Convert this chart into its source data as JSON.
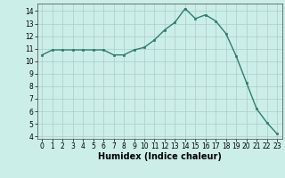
{
  "x": [
    0,
    1,
    2,
    3,
    4,
    5,
    6,
    7,
    8,
    9,
    10,
    11,
    12,
    13,
    14,
    15,
    16,
    17,
    18,
    19,
    20,
    21,
    22,
    23
  ],
  "y": [
    10.5,
    10.9,
    10.9,
    10.9,
    10.9,
    10.9,
    10.9,
    10.5,
    10.5,
    10.9,
    11.1,
    11.7,
    12.5,
    13.1,
    14.2,
    13.4,
    13.7,
    13.2,
    12.2,
    10.4,
    8.3,
    6.2,
    5.1,
    4.2
  ],
  "line_color": "#2d7d6e",
  "marker": "s",
  "markersize": 1.8,
  "linewidth": 1.0,
  "xlabel": "Humidex (Indice chaleur)",
  "xlabel_fontsize": 7,
  "xlabel_bold": true,
  "xlim": [
    -0.5,
    23.5
  ],
  "ylim": [
    3.8,
    14.6
  ],
  "yticks": [
    4,
    5,
    6,
    7,
    8,
    9,
    10,
    11,
    12,
    13,
    14
  ],
  "xticks": [
    0,
    1,
    2,
    3,
    4,
    5,
    6,
    7,
    8,
    9,
    10,
    11,
    12,
    13,
    14,
    15,
    16,
    17,
    18,
    19,
    20,
    21,
    22,
    23
  ],
  "bg_color": "#cceee8",
  "grid_color": "#aacccc",
  "tick_fontsize": 5.5
}
